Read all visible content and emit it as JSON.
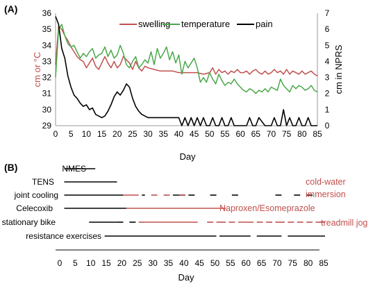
{
  "panel_a_label": "(A)",
  "panel_b_label": "(B)",
  "colors": {
    "swelling": "#c0504d",
    "temperature": "#4aa84a",
    "pain": "#000000",
    "alt": "#c0504d"
  },
  "chart_data": [
    {
      "type": "line",
      "title": "",
      "xlabel": "Day",
      "ylabel": "cm or °C",
      "ylabel_right": "cm in NPRS",
      "xlim": [
        0,
        85
      ],
      "ylim": [
        29,
        36
      ],
      "ylim_right": [
        0,
        7
      ],
      "x_ticks": [
        0,
        5,
        10,
        15,
        20,
        25,
        30,
        35,
        40,
        45,
        50,
        55,
        60,
        65,
        70,
        75,
        80,
        85
      ],
      "y_ticks": [
        29,
        30,
        31,
        32,
        33,
        34,
        35,
        36
      ],
      "y_ticks_right": [
        0,
        1,
        2,
        3,
        4,
        5,
        6,
        7
      ],
      "legend_position": "top",
      "series": [
        {
          "name": "swelling",
          "axis": "left",
          "x": [
            0,
            1,
            2,
            3,
            4,
            5,
            6,
            7,
            8,
            9,
            10,
            11,
            12,
            13,
            14,
            15,
            16,
            17,
            18,
            19,
            20,
            21,
            22,
            23,
            24,
            25,
            26,
            27,
            28,
            29,
            30,
            32,
            34,
            36,
            38,
            40,
            42,
            44,
            46,
            48,
            50,
            51,
            52,
            53,
            54,
            55,
            56,
            57,
            58,
            59,
            60,
            61,
            62,
            63,
            64,
            65,
            66,
            67,
            68,
            69,
            70,
            71,
            72,
            73,
            74,
            75,
            76,
            77,
            78,
            79,
            80,
            81,
            82,
            83,
            84,
            85
          ],
          "y": [
            32.8,
            35.2,
            35.0,
            34.6,
            34.3,
            33.9,
            33.6,
            33.3,
            33.1,
            33.0,
            32.6,
            32.9,
            33.2,
            32.7,
            32.5,
            32.9,
            33.3,
            32.9,
            32.6,
            33.0,
            32.6,
            32.8,
            33.3,
            33.1,
            32.9,
            32.5,
            33.0,
            32.6,
            32.4,
            32.7,
            32.6,
            32.5,
            32.4,
            32.4,
            32.4,
            32.3,
            32.3,
            32.3,
            32.3,
            32.2,
            32.3,
            32.6,
            32.2,
            32.5,
            32.3,
            32.4,
            32.2,
            32.4,
            32.3,
            32.5,
            32.3,
            32.3,
            32.4,
            32.2,
            32.4,
            32.5,
            32.3,
            32.2,
            32.4,
            32.2,
            32.3,
            32.5,
            32.3,
            32.4,
            32.2,
            32.5,
            32.2,
            32.4,
            32.3,
            32.2,
            32.4,
            32.2,
            32.3,
            32.4,
            32.2,
            32.1
          ]
        },
        {
          "name": "temperature",
          "axis": "left",
          "x": [
            0,
            1,
            2,
            3,
            4,
            5,
            6,
            7,
            8,
            9,
            10,
            11,
            12,
            13,
            14,
            15,
            16,
            17,
            18,
            19,
            20,
            21,
            22,
            23,
            24,
            25,
            26,
            27,
            28,
            29,
            30,
            31,
            32,
            33,
            34,
            35,
            36,
            37,
            38,
            39,
            40,
            41,
            42,
            43,
            44,
            45,
            46,
            47,
            48,
            49,
            50,
            51,
            52,
            53,
            54,
            55,
            56,
            57,
            58,
            59,
            60,
            61,
            62,
            63,
            64,
            65,
            66,
            67,
            68,
            69,
            70,
            71,
            72,
            73,
            74,
            75,
            76,
            77,
            78,
            79,
            80,
            81,
            82,
            83,
            84,
            85
          ],
          "y": [
            32.0,
            35.0,
            35.3,
            34.6,
            34.1,
            33.9,
            34.0,
            33.6,
            33.2,
            33.5,
            33.3,
            33.6,
            33.8,
            33.2,
            33.4,
            33.5,
            33.9,
            33.3,
            33.7,
            33.2,
            33.4,
            34.0,
            33.5,
            32.8,
            32.6,
            33.0,
            33.3,
            32.6,
            32.8,
            33.1,
            32.9,
            33.6,
            32.8,
            33.8,
            33.2,
            33.5,
            33.9,
            33.1,
            33.6,
            32.9,
            33.4,
            32.2,
            33.0,
            32.6,
            32.9,
            33.2,
            32.6,
            31.7,
            32.0,
            31.7,
            32.3,
            31.9,
            31.6,
            32.2,
            31.8,
            31.5,
            31.7,
            31.6,
            31.9,
            31.6,
            31.4,
            31.2,
            31.1,
            31.3,
            31.2,
            31.0,
            31.2,
            31.1,
            31.3,
            31.1,
            31.4,
            31.3,
            31.2,
            31.9,
            31.5,
            31.3,
            31.1,
            31.5,
            31.3,
            31.5,
            31.4,
            31.2,
            31.3,
            31.5,
            31.2,
            31.1
          ]
        },
        {
          "name": "pain",
          "axis": "right",
          "x": [
            0,
            1,
            2,
            3,
            4,
            5,
            6,
            7,
            8,
            9,
            10,
            11,
            12,
            13,
            14,
            15,
            16,
            17,
            18,
            19,
            20,
            21,
            22,
            23,
            24,
            25,
            26,
            27,
            28,
            29,
            30,
            31,
            32,
            35,
            38,
            40,
            41,
            42,
            43,
            44,
            45,
            46,
            47,
            48,
            49,
            50,
            51,
            52,
            53,
            54,
            55,
            56,
            57,
            58,
            60,
            62,
            63,
            64,
            65,
            66,
            68,
            70,
            71,
            72,
            73,
            74,
            75,
            76,
            77,
            78,
            79,
            80,
            81,
            82,
            83,
            84,
            85
          ],
          "y": [
            6.8,
            6.3,
            4.8,
            4.2,
            3.1,
            2.4,
            1.9,
            1.7,
            1.4,
            1.2,
            1.3,
            1.0,
            1.1,
            0.7,
            0.6,
            0.5,
            0.6,
            0.9,
            1.3,
            1.8,
            2.1,
            1.9,
            2.2,
            2.6,
            2.4,
            1.7,
            1.2,
            0.9,
            0.7,
            0.6,
            0.5,
            0.5,
            0.5,
            0.5,
            0.5,
            0.5,
            0.0,
            0.5,
            0.0,
            0.5,
            0.0,
            0.5,
            0.0,
            0.5,
            0.0,
            0.0,
            0.5,
            0.0,
            0.0,
            0.5,
            0.0,
            0.0,
            0.5,
            0.0,
            0.0,
            0.0,
            0.5,
            0.0,
            0.0,
            0.5,
            0.0,
            0.0,
            0.5,
            0.0,
            0.0,
            1.0,
            0.0,
            0.5,
            0.0,
            0.0,
            0.5,
            0.0,
            0.0,
            0.5,
            0.0,
            0.0,
            0.0
          ]
        }
      ]
    },
    {
      "type": "gantt",
      "xlabel": "Day",
      "xlim": [
        0,
        85
      ],
      "x_ticks": [
        0,
        5,
        10,
        15,
        20,
        25,
        30,
        35,
        40,
        45,
        50,
        55,
        60,
        65,
        70,
        75,
        80,
        85
      ],
      "rows": [
        {
          "label": "NMES",
          "segments": [
            [
              1,
              11,
              "base"
            ]
          ]
        },
        {
          "label": "TENS",
          "segments": [
            [
              1,
              18,
              "base"
            ]
          ]
        },
        {
          "label": "joint cooling",
          "segments": [
            [
              1,
              20,
              "base"
            ],
            [
              20,
              25,
              "alt"
            ],
            [
              26,
              27,
              "base"
            ],
            [
              29,
              31,
              "alt"
            ],
            [
              33,
              35,
              "alt"
            ],
            [
              36,
              40,
              "base"
            ],
            [
              38,
              40,
              "alt"
            ],
            [
              41,
              43,
              "base"
            ],
            [
              48,
              50,
              "base"
            ],
            [
              55,
              57,
              "base"
            ],
            [
              69,
              71,
              "base"
            ],
            [
              75,
              77,
              "base"
            ],
            [
              79,
              81,
              "base"
            ]
          ]
        },
        {
          "label": "Celecoxib",
          "segments": [
            [
              1,
              21,
              "base"
            ],
            [
              21,
              53,
              "alt"
            ]
          ]
        },
        {
          "label": "stationary bike",
          "segments": [
            [
              9,
              18,
              "base"
            ],
            [
              18,
              20,
              "base"
            ],
            [
              22,
              24,
              "base"
            ],
            [
              25,
              27,
              "alt"
            ],
            [
              27,
              44,
              "alt"
            ],
            [
              47,
              49,
              "alt"
            ],
            [
              50,
              53,
              "alt"
            ],
            [
              54,
              56,
              "alt"
            ],
            [
              57,
              62,
              "alt"
            ],
            [
              63,
              65,
              "alt"
            ],
            [
              66,
              68,
              "alt"
            ],
            [
              69,
              72,
              "alt"
            ],
            [
              73,
              75,
              "alt"
            ],
            [
              76,
              78,
              "alt"
            ],
            [
              79,
              81,
              "alt"
            ],
            [
              82,
              85,
              "alt"
            ]
          ]
        },
        {
          "label": "resistance exercises",
          "segments": [
            [
              14,
              50,
              "base"
            ],
            [
              51,
              61,
              "base"
            ],
            [
              63,
              71,
              "base"
            ],
            [
              73,
              85,
              "base"
            ]
          ]
        }
      ],
      "annotations": [
        {
          "text": "cold-water",
          "row": 2
        },
        {
          "text": "immersion",
          "row": 2
        },
        {
          "text": "Naproxen/Esomeprazole",
          "row": 3
        },
        {
          "text": "treadmill jog",
          "row": 4
        }
      ]
    }
  ]
}
